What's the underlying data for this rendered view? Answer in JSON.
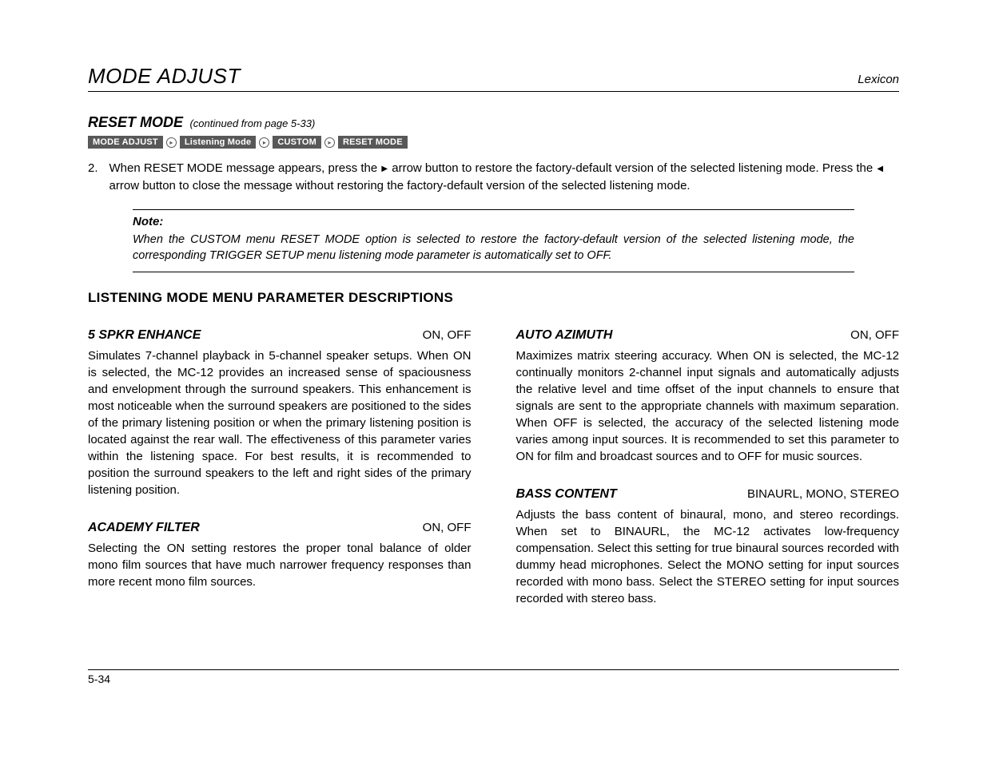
{
  "header": {
    "title": "MODE ADJUST",
    "brand": "Lexicon"
  },
  "reset_mode": {
    "title": "RESET MODE",
    "subtitle": "(continued from page 5-33)",
    "breadcrumb": [
      "MODE ADJUST",
      "Listening Mode",
      "CUSTOM",
      "RESET MODE"
    ],
    "step_num": "2.",
    "step_text_a": "When RESET MODE message appears, press the ",
    "step_text_b": " arrow button to restore the factory-default version of the selected listening mode. Press the ",
    "step_text_c": " arrow button to close the message without restoring the factory-default version of the selected listening mode."
  },
  "note": {
    "label": "Note:",
    "body": "When the CUSTOM menu RESET MODE option is selected to restore the factory-default version of the selected listening mode, the corresponding TRIGGER SETUP menu listening mode parameter is automatically set to OFF."
  },
  "h2": "LISTENING MODE MENU PARAMETER DESCRIPTIONS",
  "params": {
    "spkr": {
      "name": "5 SPKR ENHANCE",
      "vals": "ON, OFF",
      "body": "Simulates 7-channel playback in 5-channel speaker setups. When ON is selected, the MC-12 provides an increased sense of spaciousness and envelopment through the surround speakers. This enhancement is most noticeable when the surround speakers are positioned to the sides of the primary listening position or when the primary listening position is located against the rear wall. The effectiveness of this parameter varies within the listening space. For best results, it is recommended to position the surround speakers to the left and right sides of the primary listening position."
    },
    "academy": {
      "name": "ACADEMY FILTER",
      "vals": "ON, OFF",
      "body": "Selecting the ON setting restores the proper tonal balance of older mono film sources that have much narrower frequency responses than more recent mono film sources."
    },
    "azimuth": {
      "name": "AUTO AZIMUTH",
      "vals": "ON, OFF",
      "body": "Maximizes matrix steering accuracy. When ON is selected, the MC-12 continually monitors 2-channel input signals and automatically adjusts the relative level and time offset of the input channels to ensure that signals are sent to the appropriate channels with maximum separation. When OFF is selected, the accuracy of the selected listening mode varies among input sources. It is recommended to set this parameter to ON for film and broadcast sources and to OFF for music sources."
    },
    "bass": {
      "name": "BASS CONTENT",
      "vals": "BINAURL, MONO, STEREO",
      "body": "Adjusts the bass content of binaural, mono, and stereo recordings. When set to BINAURL, the MC-12 activates low-frequency compensation. Select this setting for true binaural sources recorded with dummy head microphones. Select the MONO setting for input sources recorded with mono bass. Select the STEREO setting for input sources recorded with stereo bass."
    }
  },
  "footer": {
    "page": "5-34"
  },
  "glyphs": {
    "tri_right": "▶",
    "tri_left": "◀",
    "circ_tri": "▸"
  }
}
